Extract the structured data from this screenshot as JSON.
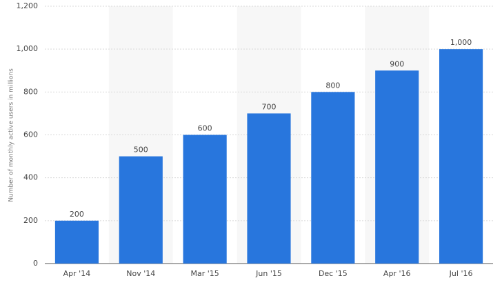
{
  "chart_data": {
    "type": "bar",
    "y_label": "Number of monthly active users in millions",
    "categories": [
      "Apr '14",
      "Nov '14",
      "Mar '15",
      "Jun '15",
      "Dec '15",
      "Apr '16",
      "Jul '16"
    ],
    "values": [
      200,
      500,
      600,
      700,
      800,
      900,
      1000
    ],
    "value_labels": [
      "200",
      "500",
      "600",
      "700",
      "800",
      "900",
      "1,000"
    ],
    "color": "#2876dd",
    "ylim": [
      0,
      1200
    ],
    "yticks": [
      0,
      200,
      400,
      600,
      800,
      {
        "value": 1000,
        "label": "1,000"
      },
      {
        "value": 1200,
        "label": "1,200"
      }
    ],
    "grid": true
  }
}
